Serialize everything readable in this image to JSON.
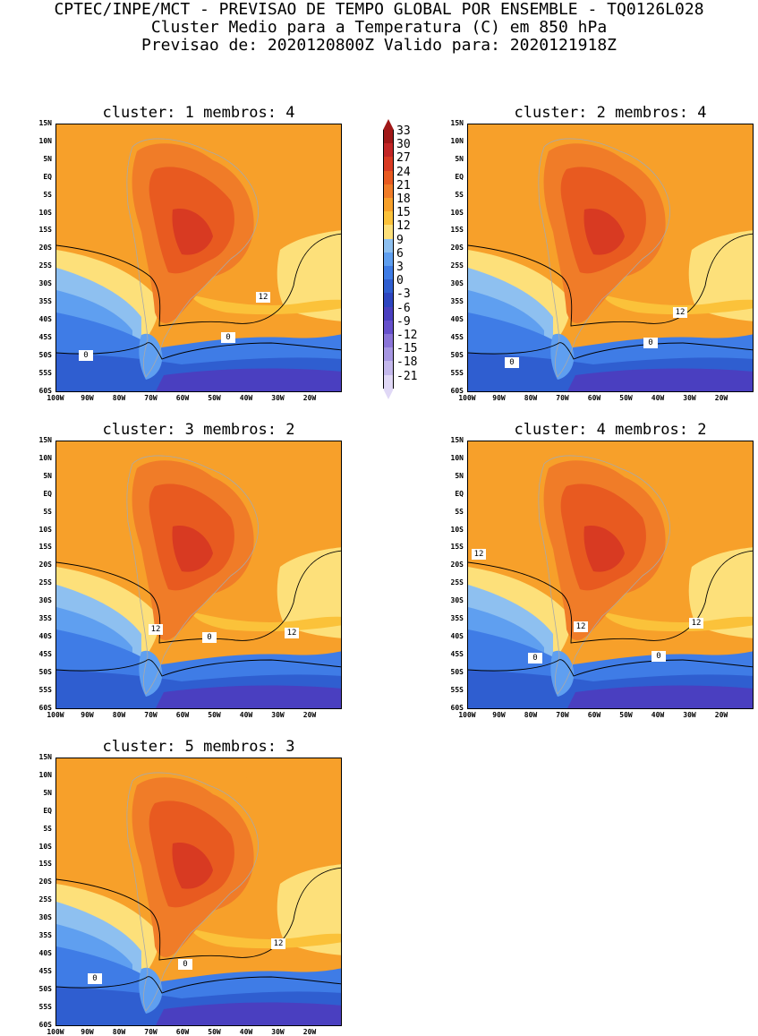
{
  "header": {
    "line1": "CPTEC/INPE/MCT - PREVISAO DE TEMPO GLOBAL POR ENSEMBLE - TQ0126L028",
    "line2": "Cluster Medio para a Temperatura (C) em 850 hPa",
    "line3": "Previsao de: 2020120800Z   Valido para: 2020121918Z"
  },
  "panels": [
    {
      "title": "cluster: 1  membros: 4",
      "contour_labels": [
        "12",
        "0",
        "0"
      ]
    },
    {
      "title": "cluster: 2  membros: 4",
      "contour_labels": [
        "12",
        "0",
        "0"
      ]
    },
    {
      "title": "cluster: 3  membros: 2",
      "contour_labels": [
        "12",
        "12",
        "0"
      ]
    },
    {
      "title": "cluster: 4  membros: 2",
      "contour_labels": [
        "12",
        "12",
        "12",
        "0",
        "0"
      ]
    },
    {
      "title": "cluster: 5  membros: 3",
      "contour_labels": [
        "12",
        "0",
        "0"
      ]
    }
  ],
  "axes": {
    "lat_labels": [
      "15N",
      "10N",
      "5N",
      "EQ",
      "5S",
      "10S",
      "15S",
      "20S",
      "25S",
      "30S",
      "35S",
      "40S",
      "45S",
      "50S",
      "55S",
      "60S"
    ],
    "lon_labels": [
      "100W",
      "90W",
      "80W",
      "70W",
      "60W",
      "50W",
      "40W",
      "30W",
      "20W"
    ]
  },
  "colorbar": {
    "labels": [
      "33",
      "30",
      "27",
      "24",
      "21",
      "18",
      "15",
      "12",
      "9",
      "6",
      "3",
      "0",
      "-3",
      "-6",
      "-9",
      "-12",
      "-15",
      "-18",
      "-21"
    ],
    "colors": [
      "#a01818",
      "#c22626",
      "#d83a22",
      "#e85a20",
      "#f07c28",
      "#f7a02a",
      "#fbc23a",
      "#fde07a",
      "#8ec0f0",
      "#5f9ff0",
      "#3f7ce6",
      "#2f5ed0",
      "#2d45c0",
      "#4a3fc0",
      "#6650cc",
      "#8a74d8",
      "#a696e2",
      "#c4b8ec",
      "#e0d8f6"
    ]
  }
}
